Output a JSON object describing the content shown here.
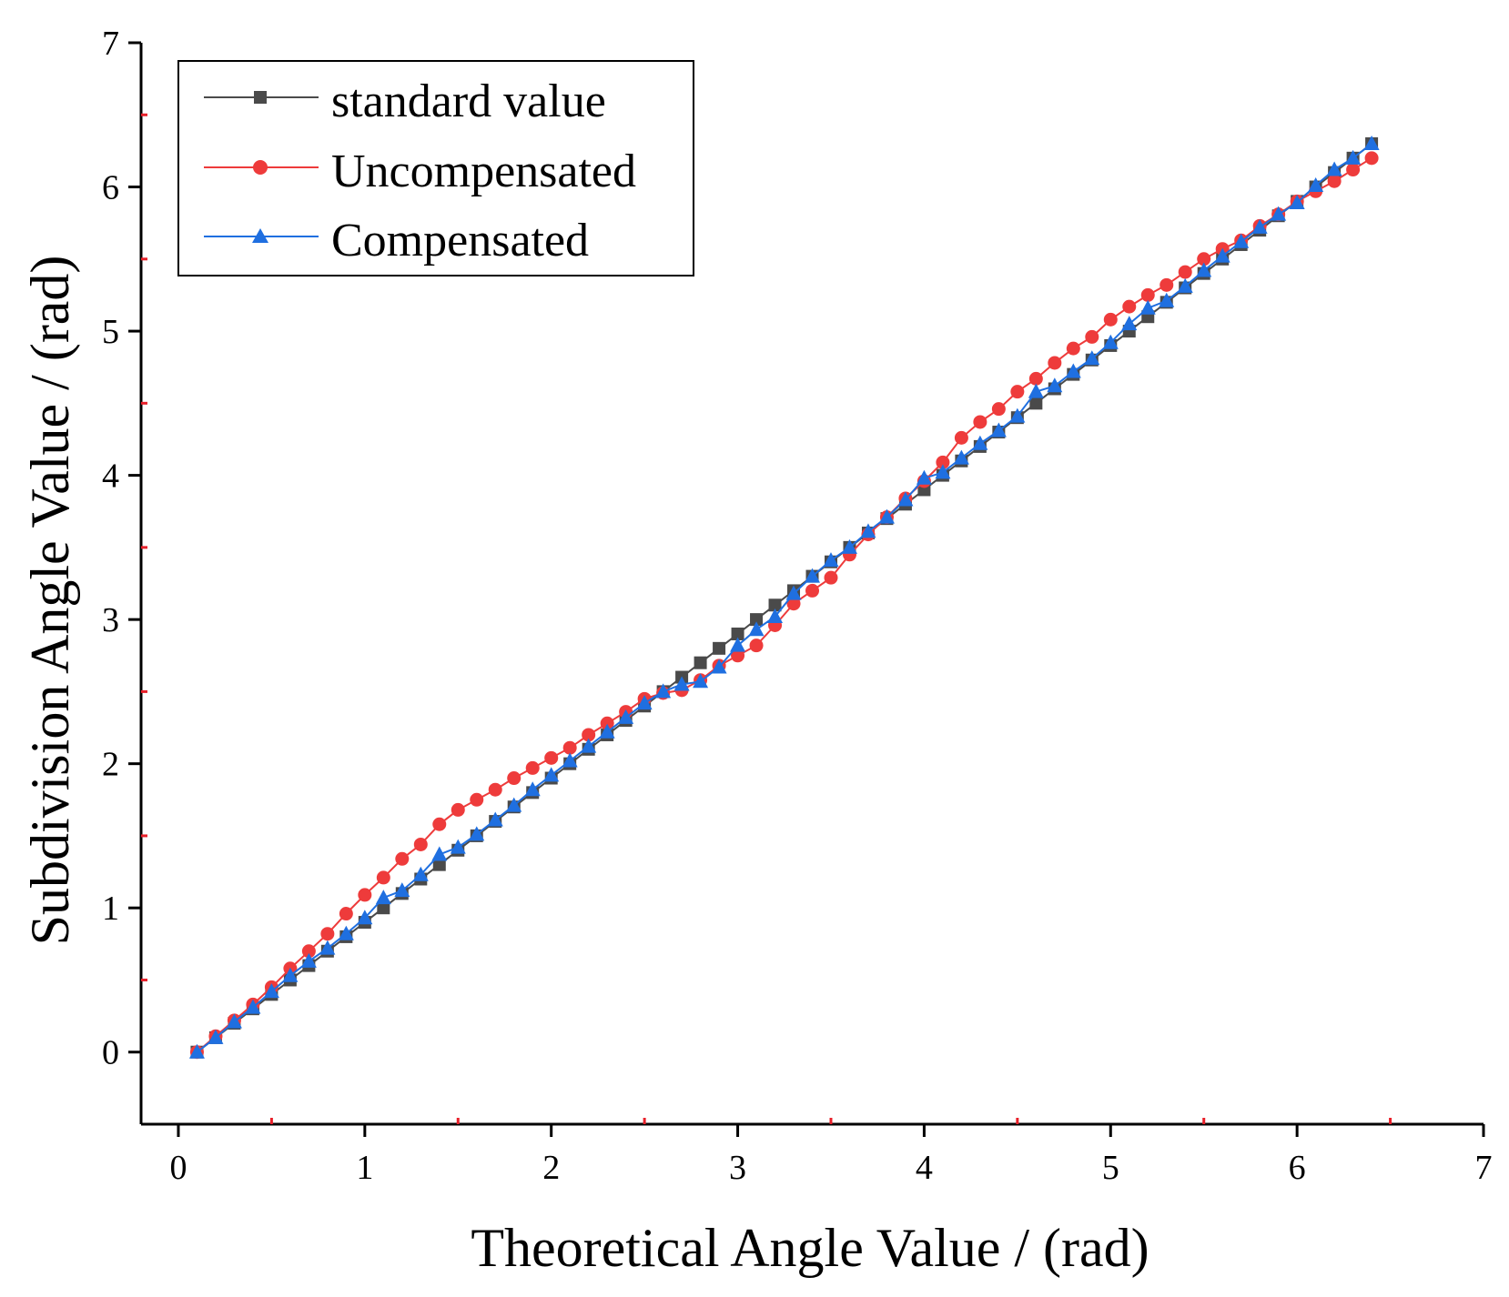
{
  "chart_data": {
    "type": "line",
    "title": "",
    "xlabel": "Theoretical Angle Value / (rad)",
    "ylabel": "Subdivision Angle Value / (rad)",
    "xlim": [
      -0.2,
      7.0
    ],
    "ylim": [
      -0.5,
      7.0
    ],
    "xticks": [
      0,
      1,
      2,
      3,
      4,
      5,
      6,
      7
    ],
    "xtick_labels": [
      "0",
      "1",
      "2",
      "3",
      "4",
      "5",
      "6",
      "7"
    ],
    "yticks": [
      0,
      1,
      2,
      3,
      4,
      5,
      6,
      7
    ],
    "ytick_labels": [
      "0",
      "1",
      "2",
      "3",
      "4",
      "5",
      "6",
      "7"
    ],
    "x_minor_ticks": [
      0.5,
      1.5,
      2.5,
      3.5,
      4.5,
      5.5,
      6.5
    ],
    "y_minor_ticks": [
      0.5,
      1.5,
      2.5,
      3.5,
      4.5,
      5.5,
      6.5
    ],
    "minor_tick_color": "#e8202a",
    "grid": false,
    "legend_position": "top-left",
    "x": [
      0.1,
      0.2,
      0.3,
      0.4,
      0.5,
      0.6,
      0.7,
      0.8,
      0.9,
      1.0,
      1.1,
      1.2,
      1.3,
      1.4,
      1.5,
      1.6,
      1.7,
      1.8,
      1.9,
      2.0,
      2.1,
      2.2,
      2.3,
      2.4,
      2.5,
      2.6,
      2.7,
      2.8,
      2.9,
      3.0,
      3.1,
      3.2,
      3.3,
      3.4,
      3.5,
      3.6,
      3.7,
      3.8,
      3.9,
      4.0,
      4.1,
      4.2,
      4.3,
      4.4,
      4.5,
      4.6,
      4.7,
      4.8,
      4.9,
      5.0,
      5.1,
      5.2,
      5.3,
      5.4,
      5.5,
      5.6,
      5.7,
      5.8,
      5.9,
      6.0,
      6.1,
      6.2,
      6.3,
      6.4
    ],
    "series": [
      {
        "name": "standard value",
        "color": "#4a4a4a",
        "marker": "square",
        "values": [
          0.0,
          0.1,
          0.2,
          0.3,
          0.4,
          0.5,
          0.6,
          0.7,
          0.8,
          0.9,
          1.0,
          1.1,
          1.2,
          1.3,
          1.4,
          1.5,
          1.6,
          1.7,
          1.8,
          1.9,
          2.0,
          2.1,
          2.2,
          2.3,
          2.4,
          2.5,
          2.6,
          2.7,
          2.8,
          2.9,
          3.0,
          3.1,
          3.2,
          3.3,
          3.4,
          3.5,
          3.6,
          3.7,
          3.8,
          3.9,
          4.0,
          4.1,
          4.2,
          4.3,
          4.4,
          4.5,
          4.6,
          4.7,
          4.8,
          4.9,
          5.0,
          5.1,
          5.2,
          5.3,
          5.4,
          5.5,
          5.6,
          5.7,
          5.8,
          5.9,
          6.0,
          6.1,
          6.2,
          6.3
        ]
      },
      {
        "name": "Uncompensated",
        "color": "#ee3b3b",
        "marker": "circle",
        "values": [
          0.0,
          0.11,
          0.22,
          0.33,
          0.45,
          0.58,
          0.7,
          0.82,
          0.96,
          1.09,
          1.21,
          1.34,
          1.44,
          1.58,
          1.68,
          1.75,
          1.82,
          1.9,
          1.97,
          2.04,
          2.11,
          2.2,
          2.28,
          2.36,
          2.45,
          2.49,
          2.51,
          2.58,
          2.68,
          2.75,
          2.82,
          2.96,
          3.11,
          3.2,
          3.29,
          3.45,
          3.59,
          3.71,
          3.84,
          3.96,
          4.09,
          4.26,
          4.37,
          4.46,
          4.58,
          4.67,
          4.78,
          4.88,
          4.96,
          5.08,
          5.17,
          5.25,
          5.32,
          5.41,
          5.5,
          5.57,
          5.63,
          5.73,
          5.81,
          5.9,
          5.97,
          6.04,
          6.12,
          6.2
        ]
      },
      {
        "name": "Compensated",
        "color": "#1f6fe0",
        "marker": "triangle",
        "values": [
          0.0,
          0.1,
          0.21,
          0.31,
          0.42,
          0.53,
          0.63,
          0.72,
          0.82,
          0.93,
          1.07,
          1.12,
          1.23,
          1.37,
          1.42,
          1.51,
          1.61,
          1.71,
          1.82,
          1.92,
          2.02,
          2.12,
          2.22,
          2.32,
          2.42,
          2.5,
          2.55,
          2.57,
          2.67,
          2.82,
          2.93,
          3.02,
          3.18,
          3.3,
          3.41,
          3.5,
          3.61,
          3.71,
          3.83,
          3.98,
          4.02,
          4.12,
          4.22,
          4.31,
          4.41,
          4.58,
          4.62,
          4.72,
          4.81,
          4.92,
          5.05,
          5.16,
          5.21,
          5.31,
          5.42,
          5.52,
          5.62,
          5.72,
          5.81,
          5.89,
          6.01,
          6.12,
          6.2,
          6.3
        ]
      }
    ]
  }
}
